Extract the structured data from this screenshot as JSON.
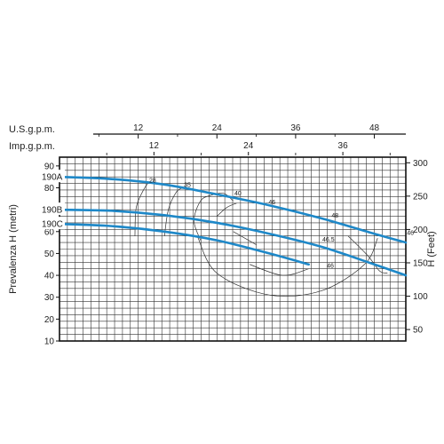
{
  "colors": {
    "curve": "#1e88c8",
    "grid": "#333333",
    "efficiency": "#333333",
    "text": "#222222"
  },
  "chart_data": {
    "type": "line",
    "title": "",
    "top_axis_1": {
      "label": "U.S.g.p.m.",
      "ticks": [
        12,
        24,
        36,
        48
      ],
      "range": [
        0,
        52.8
      ]
    },
    "top_axis_2": {
      "label": "Imp.g.p.m.",
      "ticks": [
        12,
        24,
        36
      ],
      "range": [
        0,
        44
      ]
    },
    "ylabel_left": "Prevalenza H (metri)",
    "ylim_left": [
      10,
      94
    ],
    "yticks_left": [
      10,
      20,
      30,
      40,
      50,
      60,
      70,
      80,
      90
    ],
    "ylabel_right": "H (Feet)",
    "ylim_right": [
      32.8,
      308.4
    ],
    "yticks_right": [
      50,
      100,
      150,
      200,
      250,
      300
    ],
    "grid": true,
    "series": [
      {
        "name": "190A",
        "x": [
          0,
          8,
          16,
          24,
          32,
          40,
          48,
          52.8
        ],
        "values": [
          85,
          84,
          81.5,
          77,
          72,
          66,
          59,
          55
        ]
      },
      {
        "name": "190B",
        "x": [
          0,
          8,
          16,
          24,
          32,
          40,
          48,
          52.8
        ],
        "values": [
          70,
          69.5,
          67.5,
          64,
          59,
          53,
          45,
          40
        ]
      },
      {
        "name": "190C",
        "x": [
          0,
          8,
          16,
          24,
          32,
          38
        ],
        "values": [
          63.5,
          62.5,
          60,
          56,
          50,
          45
        ]
      }
    ],
    "efficiency_curves": [
      {
        "label": "28",
        "points": [
          [
            11.5,
            58
          ],
          [
            11.7,
            71
          ],
          [
            12.8,
            79
          ],
          [
            13.6,
            82.5
          ]
        ]
      },
      {
        "label": "35",
        "points": [
          [
            16,
            58
          ],
          [
            16.6,
            70
          ],
          [
            17.8,
            78
          ],
          [
            18.8,
            80
          ]
        ]
      },
      {
        "label": "40",
        "points": [
          [
            21.5,
            56
          ],
          [
            20.5,
            65
          ],
          [
            21.5,
            74
          ],
          [
            23,
            76.5
          ],
          [
            25,
            77.5
          ],
          [
            26.5,
            74
          ]
        ]
      },
      {
        "label": "46",
        "points": [
          [
            24,
            67
          ],
          [
            25.5,
            71
          ],
          [
            27,
            73
          ]
        ]
      },
      {
        "label": "48",
        "points": [
          [
            21,
            58
          ],
          [
            24,
            41
          ],
          [
            32,
            31
          ],
          [
            40,
            33
          ],
          [
            46.5,
            45
          ],
          [
            48.5,
            57
          ]
        ]
      },
      {
        "label": "46.5",
        "points": [
          [
            26.5,
            60
          ],
          [
            30,
            54
          ]
        ]
      },
      {
        "label": "46",
        "points": [
          [
            29,
            45
          ],
          [
            34,
            40
          ],
          [
            38,
            43
          ]
        ]
      },
      {
        "label": "40",
        "points": [
          [
            44,
            58
          ],
          [
            47,
            49
          ],
          [
            48.8,
            42
          ],
          [
            50,
            41
          ]
        ]
      }
    ],
    "efficiency_labels": [
      {
        "text": "28",
        "x": 14.2,
        "y": 82.5
      },
      {
        "text": "35",
        "x": 19.5,
        "y": 80.5
      },
      {
        "text": "40",
        "x": 27.2,
        "y": 76.5
      },
      {
        "text": "46",
        "x": 32.4,
        "y": 72.5
      },
      {
        "text": "48",
        "x": 42.0,
        "y": 66.5
      },
      {
        "text": "46.5",
        "x": 41.0,
        "y": 55.5
      },
      {
        "text": "46",
        "x": 41.3,
        "y": 43.5
      },
      {
        "text": "46",
        "x": 53.5,
        "y": 58.5
      },
      {
        "text": "40",
        "x": 59.8,
        "y": 53.5
      }
    ]
  }
}
